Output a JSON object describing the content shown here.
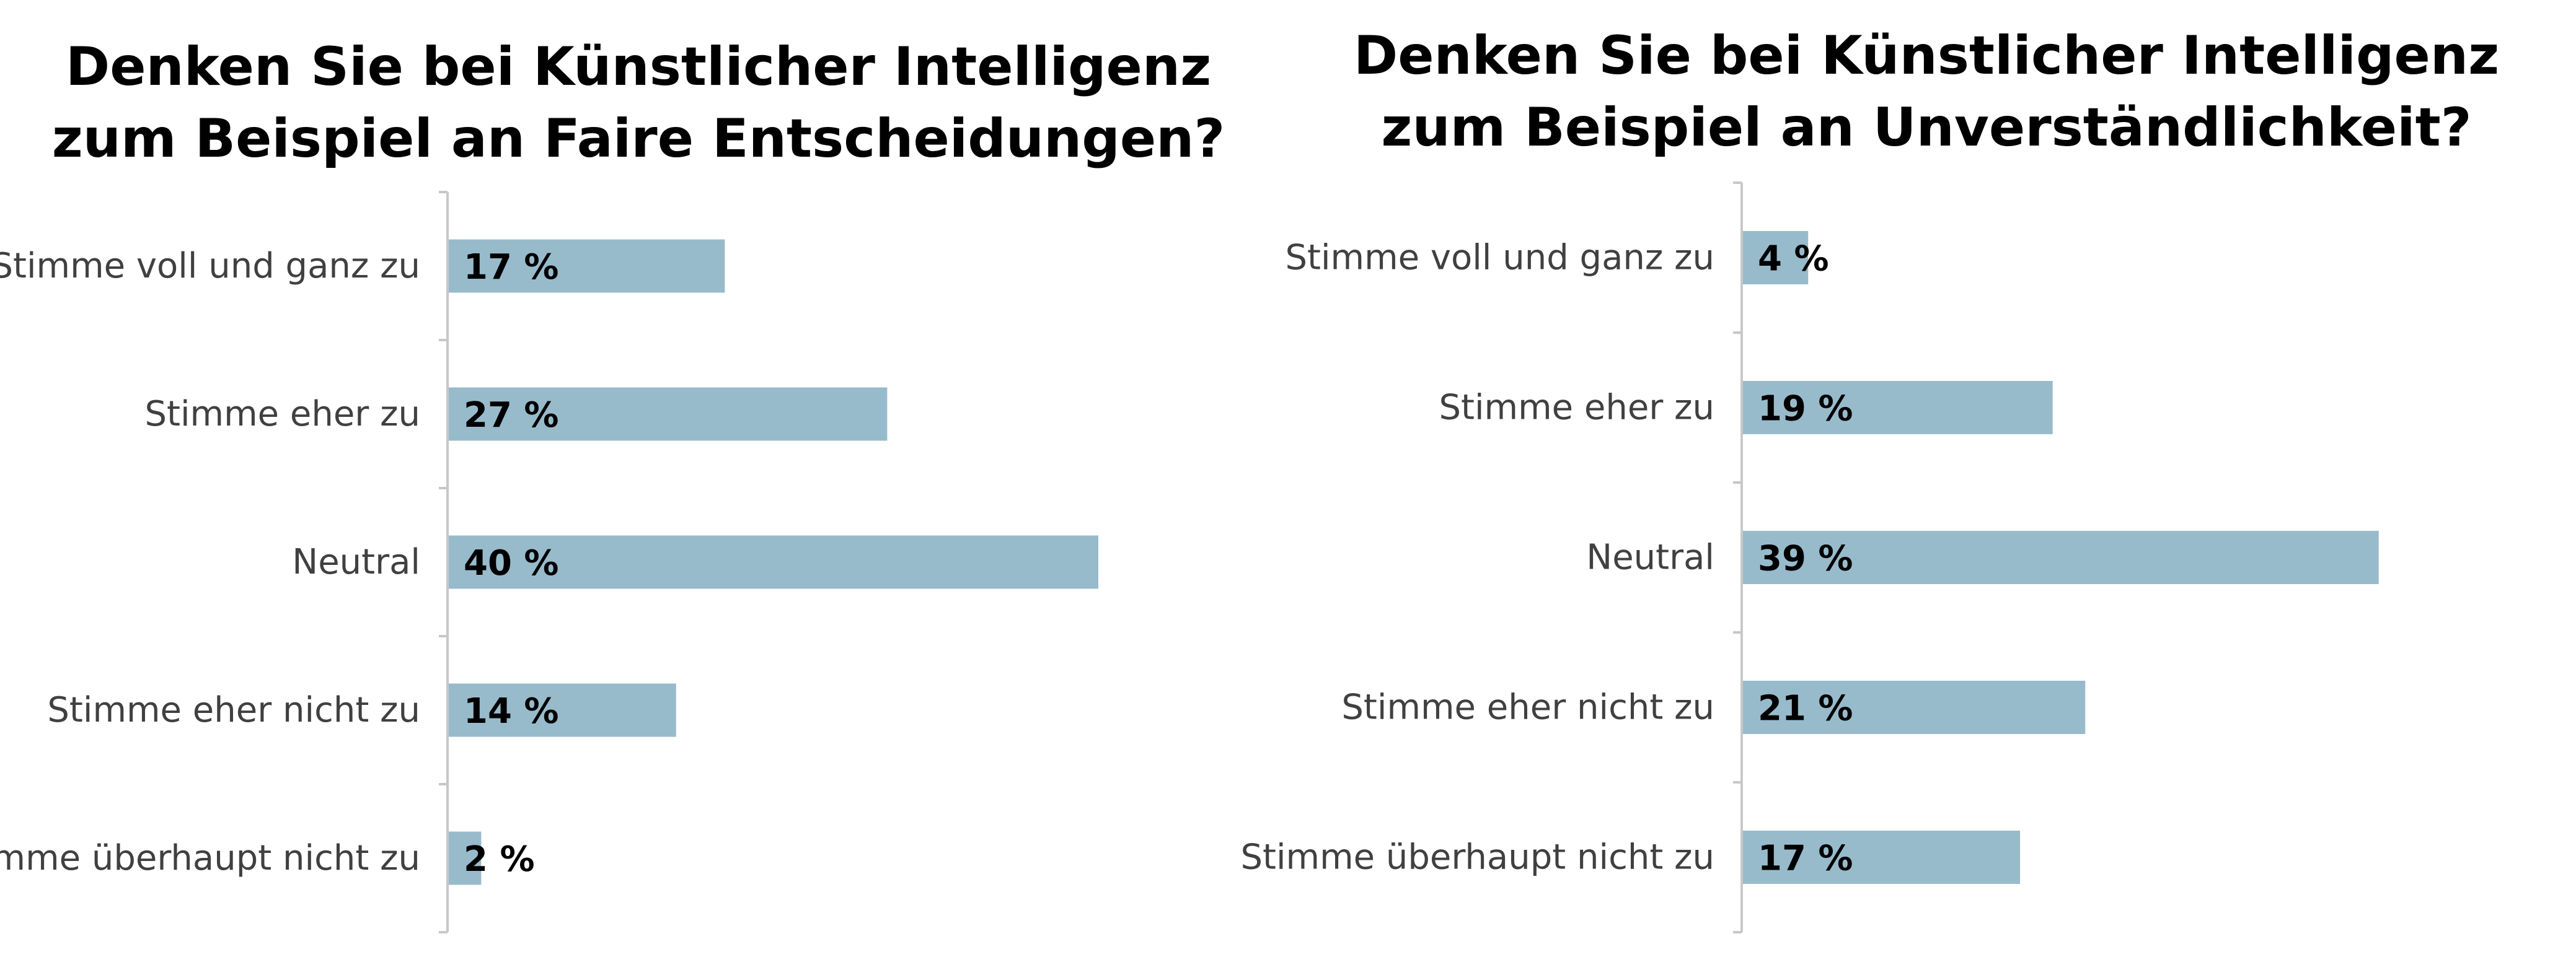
{
  "colors": {
    "bar": "#98BBCC",
    "axis": "#C8C8C8",
    "category_text": "#404040",
    "value_text": "#000000",
    "title_text": "#000000"
  },
  "chart_data": [
    {
      "type": "bar",
      "orientation": "horizontal",
      "title_lines": [
        "Denken Sie bei Künstlicher Intelligenz",
        "zum Beispiel an Faire Entscheidungen?"
      ],
      "categories": [
        "Stimme voll und ganz zu",
        "Stimme eher zu",
        "Neutral",
        "Stimme eher nicht zu",
        "Stimme überhaupt nicht zu"
      ],
      "values": [
        17,
        27,
        40,
        14,
        2
      ],
      "value_labels": [
        "17 %",
        "27 %",
        "40 %",
        "14 %",
        "2 %"
      ],
      "unit": "%",
      "xlim": [
        0,
        100
      ],
      "grid": false,
      "legend": "none"
    },
    {
      "type": "bar",
      "orientation": "horizontal",
      "title_lines": [
        "Denken Sie bei Künstlicher Intelligenz",
        "zum Beispiel an Unverständlichkeit?"
      ],
      "categories": [
        "Stimme voll und ganz zu",
        "Stimme eher zu",
        "Neutral",
        "Stimme eher nicht zu",
        "Stimme überhaupt nicht zu"
      ],
      "values": [
        4,
        19,
        39,
        21,
        17
      ],
      "value_labels": [
        "4 %",
        "19 %",
        "39 %",
        "21 %",
        "17 %"
      ],
      "unit": "%",
      "xlim": [
        0,
        100
      ],
      "grid": false,
      "legend": "none"
    }
  ]
}
